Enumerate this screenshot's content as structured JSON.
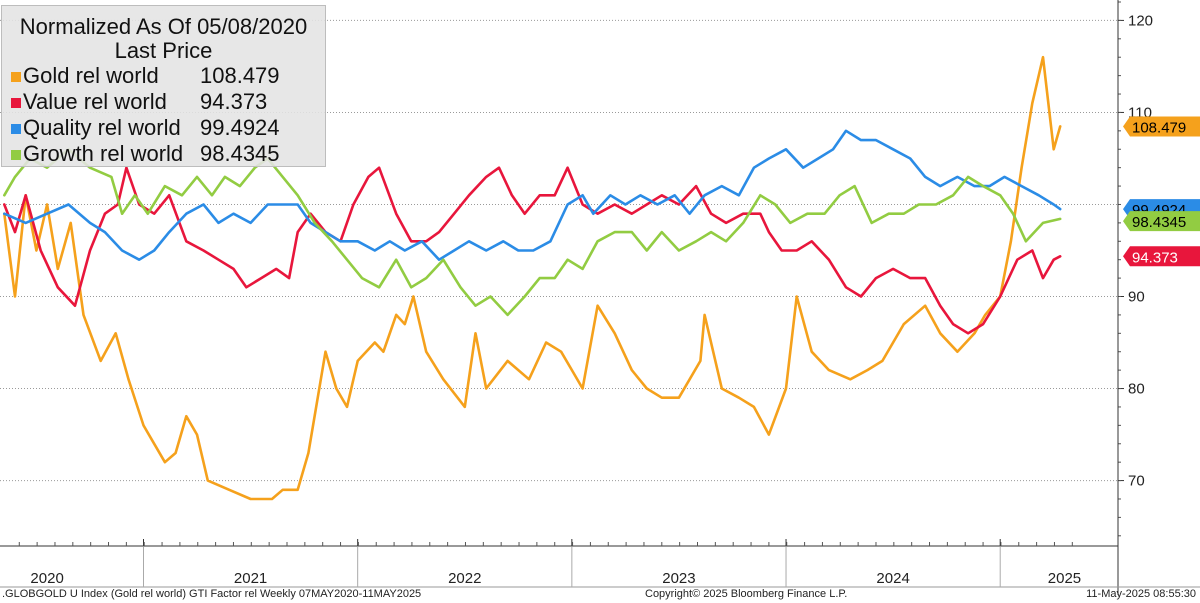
{
  "chart_data": {
    "type": "line",
    "title": "Normalized As Of 05/08/2020",
    "legend_header": "Last Price",
    "legend_position": "top-left",
    "ylim": [
      63,
      122
    ],
    "y_ticks": [
      70,
      80,
      90,
      110,
      120
    ],
    "y_tick_labels": [
      "70",
      "80",
      "90",
      "110",
      "120"
    ],
    "x_range": [
      2020.33,
      2025.55
    ],
    "x_labels": [
      {
        "label": "2020",
        "x": 2020.55
      },
      {
        "label": "2021",
        "x": 2021.5
      },
      {
        "label": "2022",
        "x": 2022.5
      },
      {
        "label": "2023",
        "x": 2023.5
      },
      {
        "label": "2024",
        "x": 2024.5
      },
      {
        "label": "2025",
        "x": 2025.3
      }
    ],
    "x_dividers": [
      2021.0,
      2022.0,
      2023.0,
      2024.0,
      2025.0
    ],
    "series": [
      {
        "name": "Gold rel world",
        "last": "108.479",
        "color": "#f5a11c",
        "tag_text": "#000000",
        "points": [
          [
            2020.35,
            99
          ],
          [
            2020.4,
            90
          ],
          [
            2020.45,
            101
          ],
          [
            2020.5,
            95
          ],
          [
            2020.55,
            100
          ],
          [
            2020.6,
            93
          ],
          [
            2020.66,
            98
          ],
          [
            2020.72,
            88
          ],
          [
            2020.8,
            83
          ],
          [
            2020.87,
            86
          ],
          [
            2020.93,
            81
          ],
          [
            2021.0,
            76
          ],
          [
            2021.05,
            74
          ],
          [
            2021.1,
            72
          ],
          [
            2021.15,
            73
          ],
          [
            2021.2,
            77
          ],
          [
            2021.25,
            75
          ],
          [
            2021.3,
            70
          ],
          [
            2021.4,
            69
          ],
          [
            2021.5,
            68
          ],
          [
            2021.6,
            68
          ],
          [
            2021.65,
            69
          ],
          [
            2021.72,
            69
          ],
          [
            2021.77,
            73
          ],
          [
            2021.85,
            84
          ],
          [
            2021.9,
            80
          ],
          [
            2021.95,
            78
          ],
          [
            2022.0,
            83
          ],
          [
            2022.08,
            85
          ],
          [
            2022.12,
            84
          ],
          [
            2022.18,
            88
          ],
          [
            2022.22,
            87
          ],
          [
            2022.26,
            90
          ],
          [
            2022.32,
            84
          ],
          [
            2022.4,
            81
          ],
          [
            2022.5,
            78
          ],
          [
            2022.55,
            86
          ],
          [
            2022.6,
            80
          ],
          [
            2022.7,
            83
          ],
          [
            2022.8,
            81
          ],
          [
            2022.88,
            85
          ],
          [
            2022.95,
            84
          ],
          [
            2023.0,
            82
          ],
          [
            2023.05,
            80
          ],
          [
            2023.12,
            89
          ],
          [
            2023.2,
            86
          ],
          [
            2023.28,
            82
          ],
          [
            2023.35,
            80
          ],
          [
            2023.42,
            79
          ],
          [
            2023.5,
            79
          ],
          [
            2023.6,
            83
          ],
          [
            2023.62,
            88
          ],
          [
            2023.7,
            80
          ],
          [
            2023.78,
            79
          ],
          [
            2023.85,
            78
          ],
          [
            2023.92,
            75
          ],
          [
            2024.0,
            80
          ],
          [
            2024.05,
            90
          ],
          [
            2024.12,
            84
          ],
          [
            2024.2,
            82
          ],
          [
            2024.3,
            81
          ],
          [
            2024.38,
            82
          ],
          [
            2024.45,
            83
          ],
          [
            2024.55,
            87
          ],
          [
            2024.65,
            89
          ],
          [
            2024.72,
            86
          ],
          [
            2024.8,
            84
          ],
          [
            2024.88,
            86
          ],
          [
            2024.93,
            88
          ],
          [
            2025.0,
            90
          ],
          [
            2025.05,
            96
          ],
          [
            2025.1,
            104
          ],
          [
            2025.15,
            111
          ],
          [
            2025.2,
            116
          ],
          [
            2025.25,
            106
          ],
          [
            2025.28,
            108.479
          ]
        ]
      },
      {
        "name": "Value rel world",
        "last": "94.373",
        "color": "#e8163c",
        "tag_text": "#ffffff",
        "points": [
          [
            2020.35,
            100
          ],
          [
            2020.4,
            97
          ],
          [
            2020.45,
            101
          ],
          [
            2020.52,
            95
          ],
          [
            2020.6,
            91
          ],
          [
            2020.68,
            89
          ],
          [
            2020.75,
            95
          ],
          [
            2020.82,
            99
          ],
          [
            2020.88,
            100
          ],
          [
            2020.92,
            104
          ],
          [
            2020.98,
            100
          ],
          [
            2021.05,
            99
          ],
          [
            2021.12,
            101
          ],
          [
            2021.2,
            96
          ],
          [
            2021.28,
            95
          ],
          [
            2021.35,
            94
          ],
          [
            2021.42,
            93
          ],
          [
            2021.48,
            91
          ],
          [
            2021.55,
            92
          ],
          [
            2021.62,
            93
          ],
          [
            2021.68,
            92
          ],
          [
            2021.72,
            97
          ],
          [
            2021.78,
            99
          ],
          [
            2021.85,
            97
          ],
          [
            2021.92,
            96
          ],
          [
            2021.98,
            100
          ],
          [
            2022.05,
            103
          ],
          [
            2022.1,
            104
          ],
          [
            2022.18,
            99
          ],
          [
            2022.25,
            96
          ],
          [
            2022.32,
            96
          ],
          [
            2022.38,
            97
          ],
          [
            2022.45,
            99
          ],
          [
            2022.52,
            101
          ],
          [
            2022.6,
            103
          ],
          [
            2022.66,
            104
          ],
          [
            2022.72,
            101
          ],
          [
            2022.78,
            99
          ],
          [
            2022.85,
            101
          ],
          [
            2022.92,
            101
          ],
          [
            2022.98,
            104
          ],
          [
            2023.05,
            100
          ],
          [
            2023.12,
            99
          ],
          [
            2023.2,
            100
          ],
          [
            2023.28,
            99
          ],
          [
            2023.35,
            100
          ],
          [
            2023.42,
            101
          ],
          [
            2023.5,
            100
          ],
          [
            2023.58,
            102
          ],
          [
            2023.65,
            99
          ],
          [
            2023.72,
            98
          ],
          [
            2023.8,
            99
          ],
          [
            2023.88,
            99
          ],
          [
            2023.92,
            97
          ],
          [
            2023.98,
            95
          ],
          [
            2024.05,
            95
          ],
          [
            2024.12,
            96
          ],
          [
            2024.2,
            94
          ],
          [
            2024.28,
            91
          ],
          [
            2024.35,
            90
          ],
          [
            2024.42,
            92
          ],
          [
            2024.5,
            93
          ],
          [
            2024.58,
            92
          ],
          [
            2024.65,
            92
          ],
          [
            2024.72,
            89
          ],
          [
            2024.78,
            87
          ],
          [
            2024.85,
            86
          ],
          [
            2024.92,
            87
          ],
          [
            2025.0,
            90
          ],
          [
            2025.08,
            94
          ],
          [
            2025.15,
            95
          ],
          [
            2025.2,
            92
          ],
          [
            2025.25,
            94
          ],
          [
            2025.28,
            94.373
          ]
        ]
      },
      {
        "name": "Quality rel world",
        "last": "99.4924",
        "color": "#2b8ce6",
        "tag_text": "#000000",
        "points": [
          [
            2020.35,
            99
          ],
          [
            2020.45,
            98
          ],
          [
            2020.55,
            99
          ],
          [
            2020.65,
            100
          ],
          [
            2020.75,
            98
          ],
          [
            2020.82,
            97
          ],
          [
            2020.9,
            95
          ],
          [
            2020.98,
            94
          ],
          [
            2021.05,
            95
          ],
          [
            2021.12,
            97
          ],
          [
            2021.2,
            99
          ],
          [
            2021.28,
            100
          ],
          [
            2021.35,
            98
          ],
          [
            2021.42,
            99
          ],
          [
            2021.5,
            98
          ],
          [
            2021.58,
            100
          ],
          [
            2021.65,
            100
          ],
          [
            2021.72,
            100
          ],
          [
            2021.78,
            98
          ],
          [
            2021.85,
            97
          ],
          [
            2021.92,
            96
          ],
          [
            2022.0,
            96
          ],
          [
            2022.08,
            95
          ],
          [
            2022.15,
            96
          ],
          [
            2022.22,
            95
          ],
          [
            2022.3,
            96
          ],
          [
            2022.38,
            94
          ],
          [
            2022.45,
            95
          ],
          [
            2022.52,
            96
          ],
          [
            2022.6,
            95
          ],
          [
            2022.68,
            96
          ],
          [
            2022.75,
            95
          ],
          [
            2022.82,
            95
          ],
          [
            2022.9,
            96
          ],
          [
            2022.98,
            100
          ],
          [
            2023.05,
            101
          ],
          [
            2023.1,
            99
          ],
          [
            2023.18,
            101
          ],
          [
            2023.25,
            100
          ],
          [
            2023.32,
            101
          ],
          [
            2023.4,
            100
          ],
          [
            2023.48,
            101
          ],
          [
            2023.55,
            99
          ],
          [
            2023.62,
            101
          ],
          [
            2023.7,
            102
          ],
          [
            2023.78,
            101
          ],
          [
            2023.85,
            104
          ],
          [
            2023.92,
            105
          ],
          [
            2024.0,
            106
          ],
          [
            2024.08,
            104
          ],
          [
            2024.15,
            105
          ],
          [
            2024.22,
            106
          ],
          [
            2024.28,
            108
          ],
          [
            2024.35,
            107
          ],
          [
            2024.42,
            107
          ],
          [
            2024.5,
            106
          ],
          [
            2024.58,
            105
          ],
          [
            2024.65,
            103
          ],
          [
            2024.72,
            102
          ],
          [
            2024.8,
            103
          ],
          [
            2024.88,
            102
          ],
          [
            2024.95,
            102
          ],
          [
            2025.02,
            103
          ],
          [
            2025.1,
            102
          ],
          [
            2025.18,
            101
          ],
          [
            2025.25,
            100
          ],
          [
            2025.28,
            99.4924
          ]
        ]
      },
      {
        "name": "Growth rel world",
        "last": "98.4345",
        "color": "#92cc42",
        "tag_text": "#000000",
        "points": [
          [
            2020.35,
            101
          ],
          [
            2020.4,
            103
          ],
          [
            2020.47,
            105
          ],
          [
            2020.55,
            104
          ],
          [
            2020.65,
            106
          ],
          [
            2020.75,
            104
          ],
          [
            2020.85,
            103
          ],
          [
            2020.9,
            99
          ],
          [
            2020.96,
            101
          ],
          [
            2021.02,
            99
          ],
          [
            2021.1,
            102
          ],
          [
            2021.18,
            101
          ],
          [
            2021.25,
            103
          ],
          [
            2021.32,
            101
          ],
          [
            2021.38,
            103
          ],
          [
            2021.45,
            102
          ],
          [
            2021.52,
            104
          ],
          [
            2021.58,
            105
          ],
          [
            2021.65,
            103
          ],
          [
            2021.72,
            101
          ],
          [
            2021.8,
            98
          ],
          [
            2021.88,
            96
          ],
          [
            2021.95,
            94
          ],
          [
            2022.02,
            92
          ],
          [
            2022.1,
            91
          ],
          [
            2022.18,
            94
          ],
          [
            2022.25,
            91
          ],
          [
            2022.32,
            92
          ],
          [
            2022.4,
            94
          ],
          [
            2022.48,
            91
          ],
          [
            2022.55,
            89
          ],
          [
            2022.62,
            90
          ],
          [
            2022.7,
            88
          ],
          [
            2022.78,
            90
          ],
          [
            2022.85,
            92
          ],
          [
            2022.92,
            92
          ],
          [
            2022.98,
            94
          ],
          [
            2023.05,
            93
          ],
          [
            2023.12,
            96
          ],
          [
            2023.2,
            97
          ],
          [
            2023.28,
            97
          ],
          [
            2023.35,
            95
          ],
          [
            2023.42,
            97
          ],
          [
            2023.5,
            95
          ],
          [
            2023.58,
            96
          ],
          [
            2023.65,
            97
          ],
          [
            2023.72,
            96
          ],
          [
            2023.8,
            98
          ],
          [
            2023.88,
            101
          ],
          [
            2023.95,
            100
          ],
          [
            2024.02,
            98
          ],
          [
            2024.1,
            99
          ],
          [
            2024.18,
            99
          ],
          [
            2024.25,
            101
          ],
          [
            2024.32,
            102
          ],
          [
            2024.4,
            98
          ],
          [
            2024.48,
            99
          ],
          [
            2024.55,
            99
          ],
          [
            2024.62,
            100
          ],
          [
            2024.7,
            100
          ],
          [
            2024.78,
            101
          ],
          [
            2024.85,
            103
          ],
          [
            2024.92,
            102
          ],
          [
            2025.0,
            101
          ],
          [
            2025.06,
            99
          ],
          [
            2025.12,
            96
          ],
          [
            2025.2,
            98
          ],
          [
            2025.28,
            98.4345
          ]
        ]
      }
    ]
  },
  "footer": {
    "left": ".GLOBGOLD U Index (Gold rel world) GTI Factor rel  Weekly 07MAY2020-11MAY2025",
    "center": "Copyright© 2025 Bloomberg Finance L.P.",
    "right": "11-May-2025 08:55:30"
  }
}
